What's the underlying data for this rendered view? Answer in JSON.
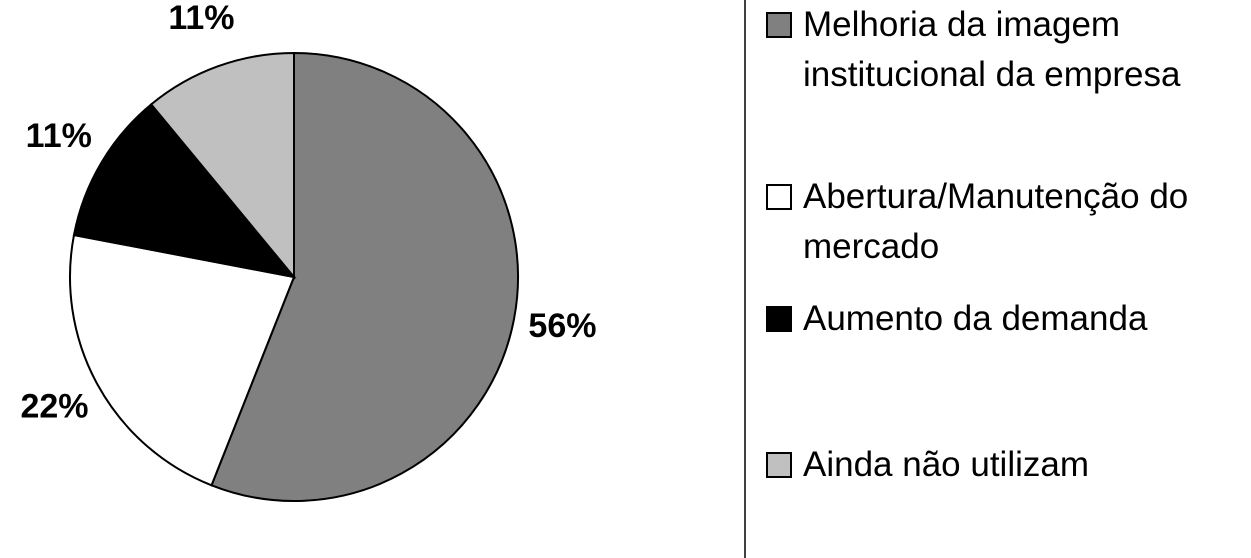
{
  "chart_data": {
    "type": "pie",
    "categories": [
      "Melhoria da imagem institucional da empresa",
      "Abertura/Manutenção do mercado",
      "Aumento da demanda",
      "Ainda não utilizam"
    ],
    "values": [
      56,
      22,
      11,
      11
    ],
    "value_labels": [
      "56%",
      "22%",
      "11%",
      "11%"
    ],
    "colors": [
      "#808080",
      "#ffffff",
      "#000000",
      "#c0c0c0"
    ]
  }
}
